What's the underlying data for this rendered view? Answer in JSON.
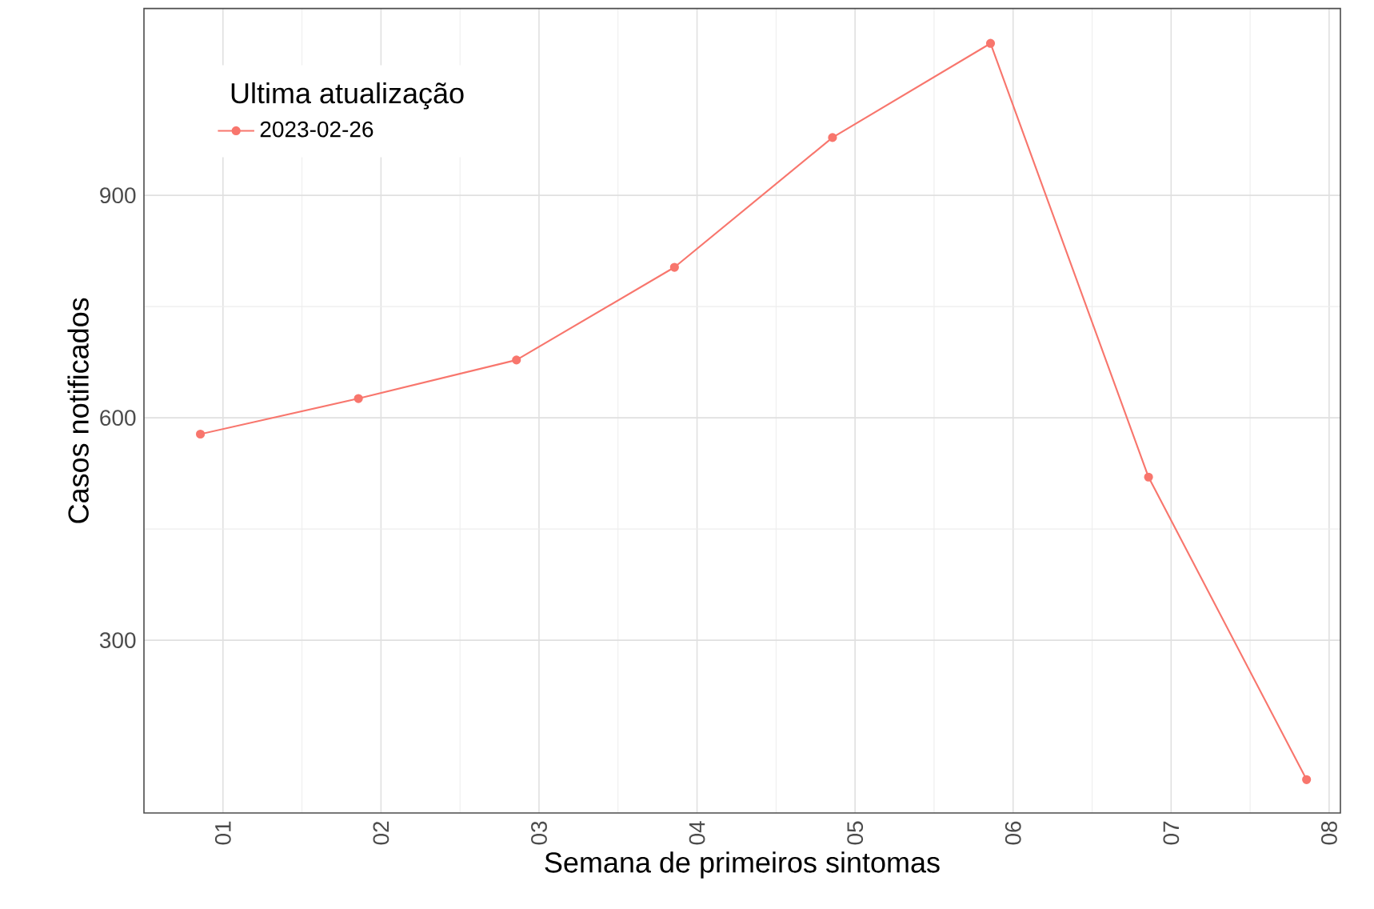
{
  "chart_data": {
    "type": "line",
    "xlabel": "Semana de primeiros sintomas",
    "ylabel": "Casos notificados",
    "legend_title": "Ultima atualização",
    "x": [
      "2023-01-01",
      "2023-01-08",
      "2023-01-15",
      "2023-01-22",
      "2023-01-29",
      "2023-02-05",
      "2023-02-12",
      "2023-02-19"
    ],
    "series": [
      {
        "name": "2023-02-26",
        "color": "#f8766d",
        "values": [
          578,
          626,
          678,
          803,
          978,
          1105,
          520,
          112
        ]
      }
    ],
    "xlim": [
      "2022-12-29T12:00",
      "2023-02-20T12:00"
    ],
    "xticks": [
      {
        "value": "2023-01-02",
        "label": "01"
      },
      {
        "value": "2023-01-09",
        "label": "02"
      },
      {
        "value": "2023-01-16",
        "label": "03"
      },
      {
        "value": "2023-01-23",
        "label": "04"
      },
      {
        "value": "2023-01-30",
        "label": "05"
      },
      {
        "value": "2023-02-06",
        "label": "06"
      },
      {
        "value": "2023-02-13",
        "label": "07"
      },
      {
        "value": "2023-02-20",
        "label": "08"
      }
    ],
    "ylim": [
      67,
      1152
    ],
    "yticks": [
      300,
      600,
      900
    ],
    "grid": true,
    "legend": "top left",
    "marker": "circle",
    "line_style": "solid"
  }
}
